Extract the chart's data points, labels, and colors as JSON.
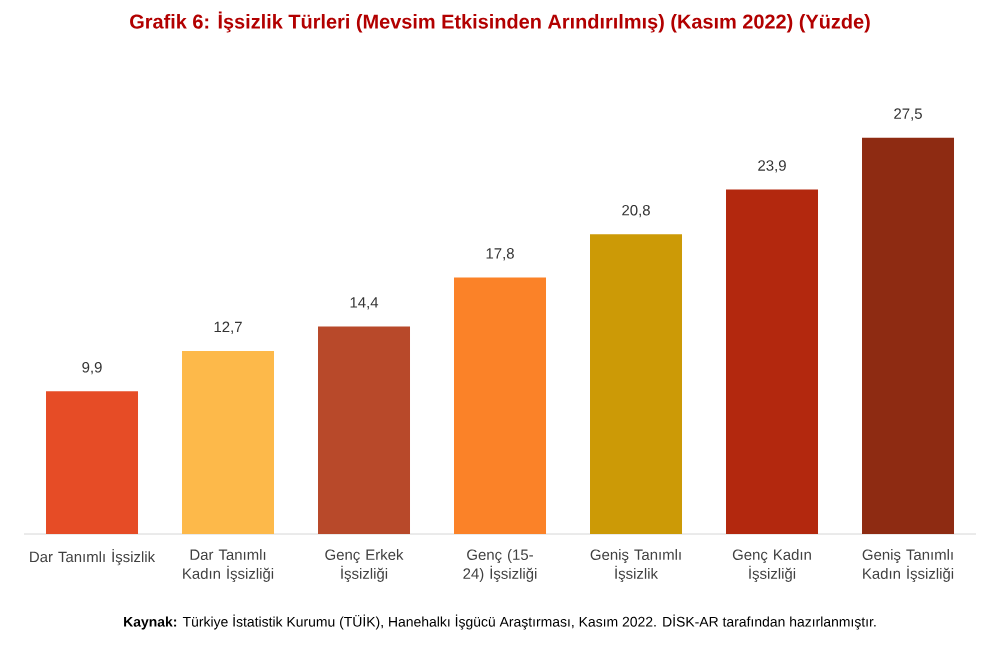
{
  "chart_data": {
    "type": "bar",
    "title": "Grafik 6: İşsizlik Türleri (Mevsim Etkisinden Arındırılmış) (Kasım 2022) (Yüzde)",
    "categories": [
      "Dar Tanımlı İşsizlik",
      "Dar Tanımlı Kadın İşsizliği",
      "Genç Erkek İşsizliği",
      "Genç (15-24) İşsizliği",
      "Geniş Tanımlı İşsizlik",
      "Genç Kadın İşsizliği",
      "Geniş Tanımlı Kadın İşsizliği"
    ],
    "values": [
      9.9,
      12.7,
      14.4,
      17.8,
      20.8,
      23.9,
      27.5
    ],
    "value_labels": [
      "9,9",
      "12,7",
      "14,4",
      "17,8",
      "20,8",
      "23,9",
      "27,5"
    ],
    "colors": [
      "#e64c26",
      "#fdb94a",
      "#b8492a",
      "#fb8228",
      "#cc9a06",
      "#b3280e",
      "#8e2b12"
    ],
    "annotations": [
      "**Kaynak:** Türkiye İstatistik Kurumu (TÜİK), Hanehalkı İşgücü Araştırması, Kasım 2022. DİSK-AR tarafından hazırlanmıştır."
    ]
  }
}
